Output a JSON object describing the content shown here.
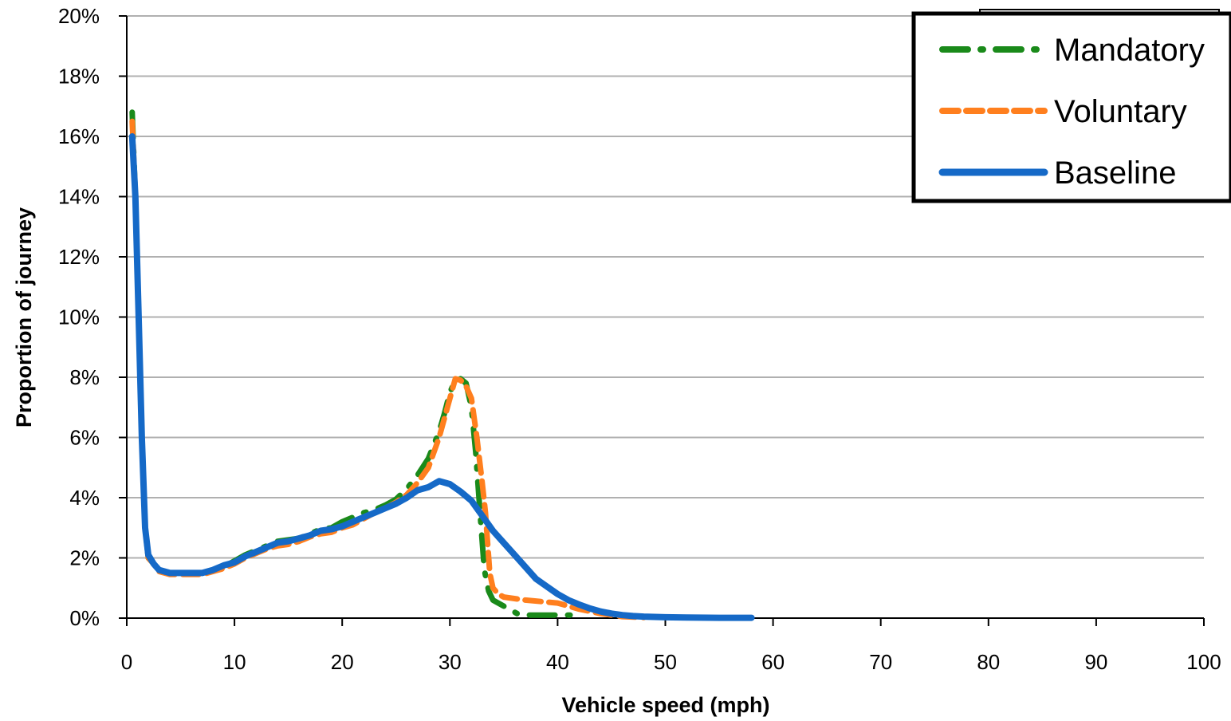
{
  "chart_data": {
    "type": "line",
    "title": "",
    "xlabel": "Vehicle speed  (mph)",
    "ylabel": "Proportion of journey",
    "xlim": [
      0,
      100
    ],
    "ylim": [
      0,
      20
    ],
    "x_ticks": [
      0,
      10,
      20,
      30,
      40,
      50,
      60,
      70,
      80,
      90,
      100
    ],
    "x_tick_labels": [
      "0",
      "10",
      "20",
      "30",
      "40",
      "50",
      "60",
      "70",
      "80",
      "90",
      "100"
    ],
    "y_ticks": [
      0,
      2,
      4,
      6,
      8,
      10,
      12,
      14,
      16,
      18,
      20
    ],
    "y_tick_labels": [
      "0%",
      "2%",
      "4%",
      "6%",
      "8%",
      "10%",
      "12%",
      "14%",
      "16%",
      "18%",
      "20%"
    ],
    "grid": "horizontal",
    "legend_position": "top-right",
    "series": [
      {
        "name": "Mandatory",
        "color": "#1a8a1a",
        "style": "dash-dot",
        "points": [
          [
            0.5,
            16.8
          ],
          [
            0.8,
            14
          ],
          [
            1.1,
            10
          ],
          [
            1.4,
            6
          ],
          [
            1.7,
            3
          ],
          [
            2,
            2
          ],
          [
            2.5,
            1.8
          ],
          [
            3,
            1.6
          ],
          [
            4,
            1.5
          ],
          [
            5,
            1.5
          ],
          [
            6,
            1.5
          ],
          [
            7,
            1.5
          ],
          [
            8,
            1.6
          ],
          [
            9,
            1.7
          ],
          [
            10,
            1.9
          ],
          [
            11,
            2.1
          ],
          [
            12,
            2.25
          ],
          [
            13,
            2.4
          ],
          [
            14,
            2.55
          ],
          [
            15,
            2.6
          ],
          [
            16,
            2.65
          ],
          [
            17,
            2.8
          ],
          [
            18,
            2.95
          ],
          [
            19,
            3.0
          ],
          [
            20,
            3.2
          ],
          [
            21,
            3.35
          ],
          [
            22,
            3.5
          ],
          [
            23,
            3.6
          ],
          [
            24,
            3.75
          ],
          [
            25,
            3.95
          ],
          [
            26,
            4.3
          ],
          [
            27,
            4.75
          ],
          [
            28,
            5.3
          ],
          [
            29,
            6.2
          ],
          [
            29.5,
            6.8
          ],
          [
            30,
            7.5
          ],
          [
            30.5,
            7.9
          ],
          [
            31,
            7.95
          ],
          [
            31.5,
            7.8
          ],
          [
            32,
            7.0
          ],
          [
            32.4,
            5.5
          ],
          [
            32.8,
            3.5
          ],
          [
            33.2,
            1.6
          ],
          [
            33.6,
            0.9
          ],
          [
            34,
            0.6
          ],
          [
            35,
            0.4
          ],
          [
            36,
            0.2
          ],
          [
            36.5,
            0.1
          ],
          [
            38,
            0.1
          ],
          [
            42,
            0.1
          ]
        ]
      },
      {
        "name": "Voluntary",
        "color": "#ff7f1e",
        "style": "dashed",
        "points": [
          [
            0.5,
            16.5
          ],
          [
            0.8,
            14
          ],
          [
            1.1,
            10
          ],
          [
            1.4,
            6
          ],
          [
            1.7,
            3
          ],
          [
            2,
            2
          ],
          [
            2.5,
            1.8
          ],
          [
            3,
            1.55
          ],
          [
            4,
            1.45
          ],
          [
            5,
            1.45
          ],
          [
            6,
            1.45
          ],
          [
            7,
            1.45
          ],
          [
            8,
            1.55
          ],
          [
            9,
            1.65
          ],
          [
            10,
            1.8
          ],
          [
            11,
            2.0
          ],
          [
            12,
            2.15
          ],
          [
            13,
            2.3
          ],
          [
            14,
            2.4
          ],
          [
            15,
            2.45
          ],
          [
            16,
            2.55
          ],
          [
            17,
            2.7
          ],
          [
            18,
            2.8
          ],
          [
            19,
            2.85
          ],
          [
            20,
            3.0
          ],
          [
            21,
            3.1
          ],
          [
            22,
            3.3
          ],
          [
            23,
            3.5
          ],
          [
            24,
            3.65
          ],
          [
            25,
            3.85
          ],
          [
            26,
            4.1
          ],
          [
            27,
            4.5
          ],
          [
            28,
            5.0
          ],
          [
            29,
            6.0
          ],
          [
            30,
            7.3
          ],
          [
            30.5,
            7.95
          ],
          [
            31,
            7.9
          ],
          [
            31.5,
            7.7
          ],
          [
            32,
            7.3
          ],
          [
            32.5,
            6.0
          ],
          [
            33,
            4.5
          ],
          [
            33.3,
            3.5
          ],
          [
            33.7,
            1.5
          ],
          [
            34,
            1.0
          ],
          [
            34.5,
            0.8
          ],
          [
            35,
            0.7
          ],
          [
            37,
            0.6
          ],
          [
            40,
            0.5
          ],
          [
            42,
            0.3
          ],
          [
            44,
            0.15
          ],
          [
            46,
            0.05
          ],
          [
            48,
            0.02
          ]
        ]
      },
      {
        "name": "Baseline",
        "color": "#1569c7",
        "style": "solid",
        "points": [
          [
            0.5,
            16.0
          ],
          [
            0.8,
            14
          ],
          [
            1.1,
            10
          ],
          [
            1.4,
            6
          ],
          [
            1.7,
            3
          ],
          [
            2,
            2.1
          ],
          [
            2.5,
            1.8
          ],
          [
            3,
            1.6
          ],
          [
            4,
            1.5
          ],
          [
            5,
            1.5
          ],
          [
            6,
            1.5
          ],
          [
            7,
            1.5
          ],
          [
            8,
            1.6
          ],
          [
            9,
            1.75
          ],
          [
            10,
            1.85
          ],
          [
            11,
            2.05
          ],
          [
            12,
            2.2
          ],
          [
            13,
            2.35
          ],
          [
            14,
            2.5
          ],
          [
            15,
            2.55
          ],
          [
            16,
            2.65
          ],
          [
            17,
            2.75
          ],
          [
            18,
            2.9
          ],
          [
            19,
            2.95
          ],
          [
            20,
            3.05
          ],
          [
            21,
            3.2
          ],
          [
            22,
            3.35
          ],
          [
            23,
            3.5
          ],
          [
            24,
            3.65
          ],
          [
            25,
            3.8
          ],
          [
            26,
            4.0
          ],
          [
            27,
            4.25
          ],
          [
            28,
            4.35
          ],
          [
            29,
            4.55
          ],
          [
            30,
            4.45
          ],
          [
            31,
            4.2
          ],
          [
            32,
            3.9
          ],
          [
            33,
            3.4
          ],
          [
            34,
            2.9
          ],
          [
            35,
            2.5
          ],
          [
            36,
            2.1
          ],
          [
            37,
            1.7
          ],
          [
            38,
            1.3
          ],
          [
            39,
            1.05
          ],
          [
            40,
            0.8
          ],
          [
            41,
            0.6
          ],
          [
            42,
            0.45
          ],
          [
            43,
            0.32
          ],
          [
            44,
            0.22
          ],
          [
            45,
            0.15
          ],
          [
            46,
            0.1
          ],
          [
            47,
            0.07
          ],
          [
            48,
            0.05
          ],
          [
            50,
            0.03
          ],
          [
            52,
            0.02
          ],
          [
            55,
            0.01
          ],
          [
            58,
            0.01
          ]
        ]
      }
    ]
  }
}
